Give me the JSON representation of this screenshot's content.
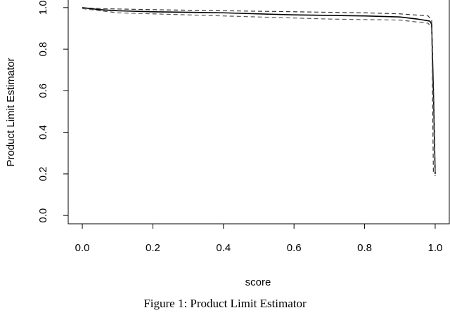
{
  "chart_data": {
    "type": "line",
    "caption": "Figure 1: Product Limit Estimator",
    "x_label": "score",
    "y_label": "Product Limit Estimator",
    "xlim": [
      -0.04,
      1.04
    ],
    "ylim": [
      -0.04,
      1.04
    ],
    "xticks": [
      {
        "value": 0,
        "label": "0.0"
      },
      0.2,
      0.4,
      0.6,
      0.8,
      {
        "value": 1,
        "label": "1.0"
      }
    ],
    "yticks": [
      {
        "value": 0,
        "label": "0.0"
      },
      0.2,
      0.4,
      0.6,
      0.8,
      {
        "value": 1,
        "label": "1.0"
      }
    ],
    "grid": false,
    "series": [
      {
        "color": "#000000",
        "dash": "solid",
        "x": [
          0,
          0.05,
          0.1,
          0.2,
          0.4,
          0.6,
          0.8,
          0.9,
          0.95,
          0.985,
          0.99,
          0.995,
          1.0
        ],
        "values": [
          1.0,
          0.99,
          0.985,
          0.98,
          0.975,
          0.965,
          0.96,
          0.955,
          0.945,
          0.935,
          0.92,
          0.6,
          0.2
        ]
      },
      {
        "color": "#333333",
        "dash": "dashed",
        "x": [
          0,
          0.05,
          0.2,
          0.4,
          0.6,
          0.8,
          0.9,
          0.98,
          0.99,
          0.995
        ],
        "values": [
          1.0,
          0.995,
          0.99,
          0.985,
          0.98,
          0.975,
          0.97,
          0.96,
          0.94,
          0.2
        ]
      },
      {
        "color": "#555555",
        "dash": "dashed",
        "x": [
          0,
          0.1,
          0.3,
          0.5,
          0.7,
          0.9,
          0.98,
          0.99,
          1.0
        ],
        "values": [
          0.995,
          0.975,
          0.965,
          0.955,
          0.945,
          0.94,
          0.925,
          0.9,
          0.19
        ]
      }
    ]
  }
}
